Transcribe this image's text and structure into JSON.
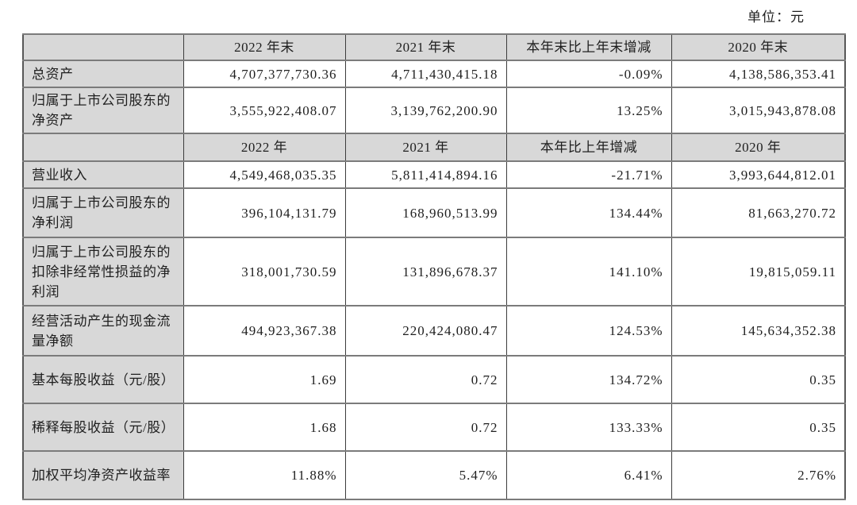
{
  "unit_label": "单位：元",
  "table": {
    "header1": [
      "",
      "2022 年末",
      "2021 年末",
      "本年末比上年末增减",
      "2020 年末"
    ],
    "rows1": [
      {
        "label": "总资产",
        "values": [
          "4,707,377,730.36",
          "4,711,430,415.18",
          "-0.09%",
          "4,138,586,353.41"
        ]
      },
      {
        "label": "归属于上市公司股东的净资产",
        "values": [
          "3,555,922,408.07",
          "3,139,762,200.90",
          "13.25%",
          "3,015,943,878.08"
        ]
      }
    ],
    "header2": [
      "",
      "2022 年",
      "2021 年",
      "本年比上年增减",
      "2020 年"
    ],
    "rows2": [
      {
        "label": "营业收入",
        "values": [
          "4,549,468,035.35",
          "5,811,414,894.16",
          "-21.71%",
          "3,993,644,812.01"
        ]
      },
      {
        "label": "归属于上市公司股东的净利润",
        "values": [
          "396,104,131.79",
          "168,960,513.99",
          "134.44%",
          "81,663,270.72"
        ]
      },
      {
        "label": "归属于上市公司股东的扣除非经常性损益的净利润",
        "values": [
          "318,001,730.59",
          "131,896,678.37",
          "141.10%",
          "19,815,059.11"
        ]
      },
      {
        "label": "经营活动产生的现金流量净额",
        "values": [
          "494,923,367.38",
          "220,424,080.47",
          "124.53%",
          "145,634,352.38"
        ]
      },
      {
        "label": "基本每股收益（元/股）",
        "values": [
          "1.69",
          "0.72",
          "134.72%",
          "0.35"
        ]
      },
      {
        "label": "稀释每股收益（元/股）",
        "values": [
          "1.68",
          "0.72",
          "133.33%",
          "0.35"
        ]
      },
      {
        "label": "加权平均净资产收益率",
        "values": [
          "11.88%",
          "5.47%",
          "6.41%",
          "2.76%"
        ]
      }
    ]
  },
  "colors": {
    "header_bg": "#d8d8d8",
    "border_vertical": "#3c3c3c",
    "border_horizontal": "#7b7b7b",
    "text": "#1f1f1f"
  }
}
